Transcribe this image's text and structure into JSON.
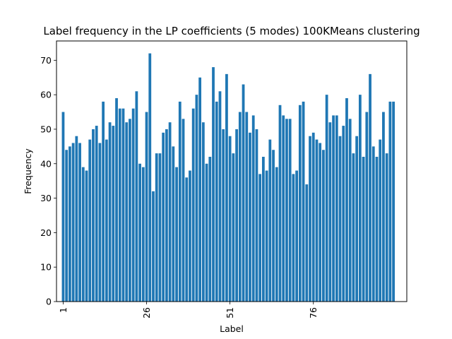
{
  "chart_data": {
    "type": "bar",
    "title": "Label frequency in the LP coefficients (5 modes) 100KMeans clustering",
    "xlabel": "Label",
    "ylabel": "Frequency",
    "x": [
      1,
      2,
      3,
      4,
      5,
      6,
      7,
      8,
      9,
      10,
      11,
      12,
      13,
      14,
      15,
      16,
      17,
      18,
      19,
      20,
      21,
      22,
      23,
      24,
      25,
      26,
      27,
      28,
      29,
      30,
      31,
      32,
      33,
      34,
      35,
      36,
      37,
      38,
      39,
      40,
      41,
      42,
      43,
      44,
      45,
      46,
      47,
      48,
      49,
      50,
      51,
      52,
      53,
      54,
      55,
      56,
      57,
      58,
      59,
      60,
      61,
      62,
      63,
      64,
      65,
      66,
      67,
      68,
      69,
      70,
      71,
      72,
      73,
      74,
      75,
      76,
      77,
      78,
      79,
      80,
      81,
      82,
      83,
      84,
      85,
      86,
      87,
      88,
      89,
      90,
      91,
      92,
      93,
      94,
      95,
      96,
      97,
      98,
      99,
      100
    ],
    "values": [
      55,
      44,
      45,
      46,
      48,
      46,
      39,
      38,
      47,
      50,
      51,
      46,
      58,
      47,
      52,
      51,
      59,
      56,
      56,
      52,
      53,
      56,
      61,
      40,
      39,
      55,
      72,
      32,
      43,
      43,
      49,
      50,
      52,
      45,
      39,
      58,
      53,
      36,
      38,
      56,
      60,
      65,
      52,
      40,
      42,
      68,
      58,
      61,
      50,
      66,
      48,
      43,
      50,
      55,
      63,
      55,
      49,
      54,
      50,
      37,
      42,
      38,
      47,
      44,
      39,
      57,
      54,
      53,
      53,
      37,
      38,
      57,
      58,
      34,
      48,
      49,
      47,
      46,
      44,
      60,
      52,
      54,
      54,
      48,
      51,
      59,
      53,
      43,
      48,
      60,
      42,
      55,
      66,
      45,
      42,
      47,
      55,
      43,
      58,
      58
    ],
    "xticks": [
      1,
      26,
      51,
      76
    ],
    "xtick_labels": [
      "1",
      "26",
      "51",
      "76"
    ],
    "yticks": [
      0,
      10,
      20,
      30,
      40,
      50,
      60,
      70
    ],
    "ytick_labels": [
      "0",
      "10",
      "20",
      "30",
      "40",
      "50",
      "60",
      "70"
    ],
    "ylim": [
      0,
      75.6
    ],
    "xlim": [
      -1.0,
      104.0
    ],
    "bar_color": "#1f77b4",
    "grid": false,
    "legend": "none"
  }
}
